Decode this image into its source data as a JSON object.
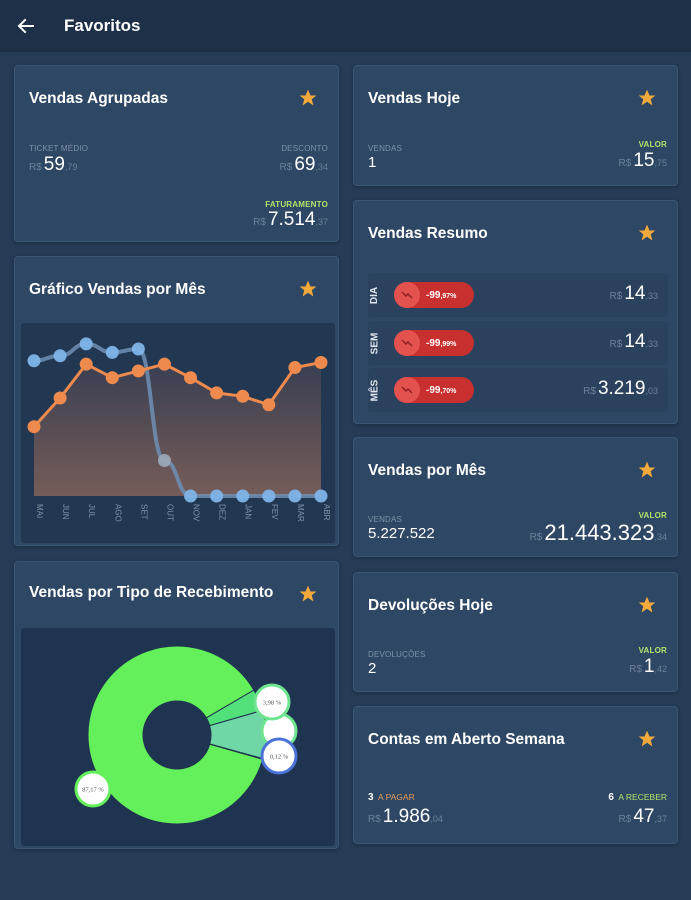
{
  "header": {
    "title": "Favoritos",
    "back_icon": "arrow-left-icon"
  },
  "colors": {
    "accent_star": "#f2a93b",
    "positive_label": "#b6e26b",
    "orange_label": "#e59a5a",
    "negative_pill": "#c8302f",
    "line_orange": "#ee8a4e",
    "line_blue": "#7fb3e8",
    "donut_green": "#63f05a"
  },
  "vendas_agrupadas": {
    "title": "Vendas Agrupadas",
    "ticket_medio": {
      "label": "TICKET MÉDIO",
      "currency": "R$",
      "int": "59",
      "dec": ",79"
    },
    "desconto": {
      "label": "DESCONTO",
      "currency": "R$",
      "int": "69",
      "dec": ",34"
    },
    "faturamento": {
      "label": "FATURAMENTO",
      "currency": "R$",
      "int": "7.514",
      "dec": ",37"
    }
  },
  "vendas_hoje": {
    "title": "Vendas Hoje",
    "vendas": {
      "label": "VENDAS",
      "value": "1"
    },
    "valor": {
      "label": "VALOR",
      "currency": "R$",
      "int": "15",
      "dec": ",75"
    }
  },
  "vendas_resumo": {
    "title": "Vendas Resumo",
    "rows": [
      {
        "period": "DIA",
        "pct_int": "-99",
        "pct_dec": ",97%",
        "currency": "R$",
        "int": "14",
        "dec": ",33"
      },
      {
        "period": "SEM",
        "pct_int": "-99",
        "pct_dec": ",99%",
        "currency": "R$",
        "int": "14",
        "dec": ",33"
      },
      {
        "period": "MÊS",
        "pct_int": "-99",
        "pct_dec": ",70%",
        "currency": "R$",
        "int": "3.219",
        "dec": ",03"
      }
    ]
  },
  "vendas_por_mes": {
    "title": "Vendas por Mês",
    "vendas": {
      "label": "VENDAS",
      "value": "5.227.522"
    },
    "valor": {
      "label": "VALOR",
      "currency": "R$",
      "int": "21.443.323",
      "dec": ",34"
    }
  },
  "devolucoes_hoje": {
    "title": "Devoluções Hoje",
    "devolucoes": {
      "label": "DEVOLUÇÕES",
      "value": "2"
    },
    "valor": {
      "label": "VALOR",
      "currency": "R$",
      "int": "1",
      "dec": ",42"
    }
  },
  "contas_aberto": {
    "title": "Contas em Aberto Semana",
    "pagar": {
      "count": "3",
      "label": "A PAGAR",
      "currency": "R$",
      "int": "1.986",
      "dec": ",04"
    },
    "receber": {
      "count": "6",
      "label": "A RECEBER",
      "currency": "R$",
      "int": "47",
      "dec": ",37"
    }
  },
  "grafico_vendas": {
    "title": "Gráfico Vendas por Mês"
  },
  "tipo_recebimento": {
    "title": "Vendas por Tipo de Recebimento"
  },
  "chart_data": [
    {
      "type": "line",
      "title": "Gráfico Vendas por Mês",
      "categories": [
        "MAI",
        "JUN",
        "JUL",
        "AGO",
        "SET",
        "OUT",
        "NOV",
        "DEZ",
        "JAN",
        "FEV",
        "MAR",
        "ABR"
      ],
      "ylim": [
        0,
        100
      ],
      "grid": false,
      "series": [
        {
          "name": "orange",
          "color": "#ee8a4e",
          "area": true,
          "values": [
            41,
            58,
            78,
            70,
            74,
            78,
            70,
            61,
            59,
            54,
            76,
            79
          ]
        },
        {
          "name": "blue",
          "color": "#7fb3e8",
          "area": false,
          "values": [
            80,
            83,
            90,
            85,
            87,
            21,
            0,
            0,
            0,
            0,
            0,
            0
          ]
        }
      ]
    },
    {
      "type": "pie",
      "title": "Vendas por Tipo de Recebimento",
      "donut": true,
      "slices": [
        {
          "label": "87,17 %",
          "value": 87.17,
          "color": "#63f05a"
        },
        {
          "label": "3,98 %",
          "value": 3.98,
          "color": "#52e07a"
        },
        {
          "label": "",
          "value": 8.73,
          "color": "#6fd6a6"
        },
        {
          "label": "0,12 %",
          "value": 0.12,
          "color": "#3d6fd8"
        }
      ]
    }
  ]
}
